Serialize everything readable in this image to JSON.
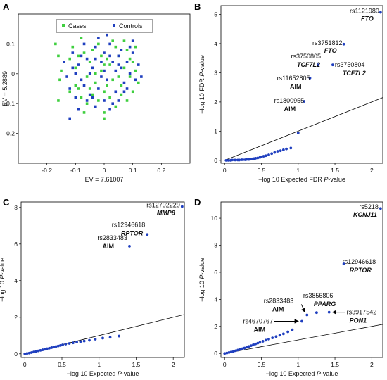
{
  "colors": {
    "cases": "#3fcf3f",
    "controls": "#1f3fbf",
    "line": "#000000",
    "points": "#1f3fbf"
  },
  "panels": [
    "A",
    "B",
    "C",
    "D"
  ],
  "chart_data": [
    {
      "id": "A",
      "type": "scatter",
      "xlabel": "EV = 7.61007",
      "ylabel": "EV = 5.2889",
      "xlim": [
        -0.3,
        0.3
      ],
      "ylim": [
        -0.3,
        0.2
      ],
      "xticks": [
        "-0.2",
        "-0.1",
        "0",
        "0.1",
        "0.2"
      ],
      "yticks": [
        "-0.2",
        "-0.1",
        "0",
        "0.1"
      ],
      "legend": {
        "placement": "top",
        "entries": [
          "Cases",
          "Controls"
        ]
      },
      "series": [
        {
          "name": "Cases",
          "points": [
            [
              -0.17,
              0.1
            ],
            [
              -0.16,
              0.06
            ],
            [
              -0.15,
              0.01
            ],
            [
              -0.155,
              -0.02
            ],
            [
              -0.16,
              -0.09
            ],
            [
              -0.12,
              0.05
            ],
            [
              -0.11,
              0.09
            ],
            [
              -0.1,
              0.02
            ],
            [
              -0.09,
              -0.05
            ],
            [
              -0.08,
              0.12
            ],
            [
              -0.07,
              0.07
            ],
            [
              -0.06,
              -0.01
            ],
            [
              -0.05,
              0.04
            ],
            [
              -0.04,
              0.08
            ],
            [
              -0.03,
              -0.03
            ],
            [
              -0.02,
              0.1
            ],
            [
              -0.01,
              0.01
            ],
            [
              0.0,
              -0.06
            ],
            [
              0.01,
              0.05
            ],
            [
              0.02,
              0.03
            ],
            [
              0.03,
              -0.02
            ],
            [
              0.04,
              0.09
            ],
            [
              0.05,
              0.06
            ],
            [
              0.06,
              -0.04
            ],
            [
              0.07,
              0.02
            ],
            [
              0.08,
              0.08
            ],
            [
              0.09,
              -0.01
            ],
            [
              0.1,
              0.04
            ],
            [
              0.11,
              0.01
            ],
            [
              0.12,
              -0.03
            ],
            [
              -0.08,
              -0.08
            ],
            [
              -0.06,
              -0.1
            ],
            [
              -0.04,
              -0.07
            ],
            [
              -0.02,
              -0.09
            ],
            [
              0.0,
              -0.13
            ],
            [
              0.02,
              -0.08
            ],
            [
              0.04,
              -0.11
            ],
            [
              0.06,
              -0.07
            ],
            [
              0.08,
              -0.09
            ],
            [
              -0.1,
              -0.04
            ],
            [
              -0.12,
              -0.06
            ],
            [
              0.0,
              0.03
            ],
            [
              -0.03,
              0.0
            ],
            [
              0.03,
              0.11
            ],
            [
              0.07,
              0.11
            ],
            [
              0.1,
              -0.06
            ],
            [
              -0.07,
              -0.13
            ],
            [
              0.0,
              -0.15
            ],
            [
              0.05,
              -0.01
            ],
            [
              -0.01,
              0.06
            ],
            [
              0.01,
              -0.04
            ],
            [
              -0.05,
              -0.05
            ],
            [
              0.09,
              0.05
            ],
            [
              -0.09,
              0.06
            ],
            [
              0.11,
              0.09
            ]
          ]
        },
        {
          "name": "Controls",
          "points": [
            [
              -0.14,
              0.04
            ],
            [
              -0.13,
              -0.01
            ],
            [
              -0.12,
              -0.05
            ],
            [
              -0.11,
              0.07
            ],
            [
              -0.1,
              -0.08
            ],
            [
              -0.09,
              0.03
            ],
            [
              -0.08,
              -0.02
            ],
            [
              -0.07,
              0.1
            ],
            [
              -0.06,
              0.05
            ],
            [
              -0.05,
              -0.07
            ],
            [
              -0.04,
              0.02
            ],
            [
              -0.03,
              0.09
            ],
            [
              -0.02,
              -0.05
            ],
            [
              -0.01,
              0.04
            ],
            [
              0.0,
              0.07
            ],
            [
              0.01,
              -0.02
            ],
            [
              0.02,
              0.1
            ],
            [
              0.03,
              0.04
            ],
            [
              0.04,
              -0.06
            ],
            [
              0.05,
              0.03
            ],
            [
              0.06,
              0.08
            ],
            [
              0.07,
              -0.03
            ],
            [
              0.08,
              0.04
            ],
            [
              0.09,
              0.0
            ],
            [
              0.1,
              0.07
            ],
            [
              0.11,
              -0.02
            ],
            [
              0.12,
              0.03
            ],
            [
              0.13,
              -0.01
            ],
            [
              -0.06,
              -0.09
            ],
            [
              -0.03,
              -0.11
            ],
            [
              0.0,
              -0.09
            ],
            [
              0.03,
              -0.1
            ],
            [
              0.05,
              -0.09
            ],
            [
              0.07,
              -0.06
            ],
            [
              -0.09,
              -0.12
            ],
            [
              -0.05,
              0.0
            ],
            [
              0.02,
              0.06
            ],
            [
              -0.08,
              0.06
            ],
            [
              0.04,
              0.01
            ],
            [
              0.06,
              0.02
            ],
            [
              -0.02,
              0.12
            ],
            [
              0.01,
              0.13
            ],
            [
              -0.07,
              -0.04
            ],
            [
              -0.1,
              0.0
            ],
            [
              0.09,
              0.09
            ],
            [
              0.02,
              -0.12
            ],
            [
              -0.01,
              -0.01
            ],
            [
              0.08,
              -0.05
            ],
            [
              -0.04,
              -0.08
            ],
            [
              -0.12,
              -0.15
            ],
            [
              0.0,
              0.01
            ],
            [
              0.1,
              0.11
            ],
            [
              -0.03,
              0.05
            ],
            [
              0.05,
              0.06
            ],
            [
              -0.11,
              0.02
            ]
          ]
        }
      ]
    },
    {
      "id": "B",
      "type": "scatter",
      "xlabel_prefix": "−log 10 Expected FDR ",
      "xlabel_italic": "P",
      "xlabel_suffix": "-value",
      "ylabel_prefix": "−log 10 FDR ",
      "ylabel_italic": "P",
      "ylabel_suffix": "-value",
      "xlim": [
        -0.05,
        2.15
      ],
      "ylim": [
        -0.1,
        5.3
      ],
      "xticks": [
        "0",
        "0.5",
        "1",
        "1.5",
        "2"
      ],
      "yticks": [
        "0",
        "1",
        "2",
        "3",
        "4",
        "5"
      ],
      "reference_line": [
        [
          0,
          0
        ],
        [
          2.15,
          2.15
        ]
      ],
      "points": [
        [
          0.02,
          0.0
        ],
        [
          0.05,
          0.0
        ],
        [
          0.08,
          0.0
        ],
        [
          0.1,
          0.01
        ],
        [
          0.13,
          0.01
        ],
        [
          0.15,
          0.01
        ],
        [
          0.18,
          0.01
        ],
        [
          0.2,
          0.01
        ],
        [
          0.23,
          0.02
        ],
        [
          0.25,
          0.02
        ],
        [
          0.28,
          0.02
        ],
        [
          0.3,
          0.03
        ],
        [
          0.33,
          0.03
        ],
        [
          0.35,
          0.04
        ],
        [
          0.38,
          0.05
        ],
        [
          0.4,
          0.06
        ],
        [
          0.42,
          0.07
        ],
        [
          0.45,
          0.08
        ],
        [
          0.48,
          0.1
        ],
        [
          0.5,
          0.12
        ],
        [
          0.53,
          0.14
        ],
        [
          0.56,
          0.16
        ],
        [
          0.6,
          0.19
        ],
        [
          0.64,
          0.23
        ],
        [
          0.68,
          0.27
        ],
        [
          0.72,
          0.31
        ],
        [
          0.76,
          0.33
        ],
        [
          0.8,
          0.36
        ],
        [
          0.84,
          0.39
        ],
        [
          0.9,
          0.42
        ],
        [
          1.0,
          0.94
        ],
        [
          1.08,
          2.02
        ],
        [
          1.16,
          2.82
        ],
        [
          1.27,
          3.27
        ],
        [
          1.47,
          3.27
        ],
        [
          1.62,
          3.98
        ],
        [
          2.12,
          5.07
        ]
      ],
      "annotations": [
        {
          "snp": "rs1121980",
          "gene": "FTO",
          "italic": true,
          "x": 2.12,
          "y": 5.07
        },
        {
          "snp": "rs3751812",
          "gene": "FTO",
          "italic": true,
          "x": 1.62,
          "y": 3.98
        },
        {
          "snp": "rs3750805",
          "gene": "TCF7L2",
          "italic": true,
          "x": 1.27,
          "y": 3.27
        },
        {
          "snp": "rs3750804",
          "gene": "TCF7L2",
          "italic": true,
          "x": 1.47,
          "y": 3.27
        },
        {
          "snp": "rs11652805",
          "gene": "AIM",
          "italic": false,
          "x": 1.16,
          "y": 2.82
        },
        {
          "snp": "rs1800955",
          "gene": "AIM",
          "italic": false,
          "x": 1.08,
          "y": 2.02
        }
      ]
    },
    {
      "id": "C",
      "type": "scatter",
      "xlabel_prefix": "−log 10 Expected ",
      "xlabel_italic": "P",
      "xlabel_suffix": "-value",
      "ylabel_prefix": "−log 10 ",
      "ylabel_italic": "P",
      "ylabel_suffix": "-value",
      "xlim": [
        -0.05,
        2.15
      ],
      "ylim": [
        -0.2,
        8.3
      ],
      "xticks": [
        "0",
        "0.5",
        "1",
        "1.5",
        "2"
      ],
      "yticks": [
        "0",
        "2",
        "4",
        "6",
        "8"
      ],
      "reference_line": [
        [
          0,
          0
        ],
        [
          2.15,
          2.15
        ]
      ],
      "points": [
        [
          0.0,
          0.0
        ],
        [
          0.03,
          0.02
        ],
        [
          0.06,
          0.04
        ],
        [
          0.09,
          0.07
        ],
        [
          0.12,
          0.1
        ],
        [
          0.15,
          0.13
        ],
        [
          0.18,
          0.16
        ],
        [
          0.21,
          0.19
        ],
        [
          0.24,
          0.22
        ],
        [
          0.27,
          0.25
        ],
        [
          0.3,
          0.28
        ],
        [
          0.33,
          0.31
        ],
        [
          0.36,
          0.34
        ],
        [
          0.39,
          0.37
        ],
        [
          0.42,
          0.4
        ],
        [
          0.45,
          0.43
        ],
        [
          0.48,
          0.46
        ],
        [
          0.51,
          0.49
        ],
        [
          0.55,
          0.53
        ],
        [
          0.6,
          0.57
        ],
        [
          0.65,
          0.6
        ],
        [
          0.7,
          0.64
        ],
        [
          0.75,
          0.67
        ],
        [
          0.8,
          0.7
        ],
        [
          0.87,
          0.74
        ],
        [
          0.95,
          0.8
        ],
        [
          1.05,
          0.86
        ],
        [
          1.15,
          0.9
        ],
        [
          1.27,
          0.97
        ],
        [
          1.41,
          5.88
        ],
        [
          1.65,
          6.52
        ],
        [
          2.12,
          8.05
        ]
      ],
      "annotations": [
        {
          "snp": "rs12792229",
          "gene": "MMP8",
          "italic": true,
          "x": 2.12,
          "y": 8.05
        },
        {
          "snp": "rs12946618",
          "gene": "RPTOR",
          "italic": true,
          "x": 1.65,
          "y": 6.52
        },
        {
          "snp": "rs2833483",
          "gene": "AIM",
          "italic": false,
          "x": 1.41,
          "y": 5.88
        }
      ]
    },
    {
      "id": "D",
      "type": "scatter",
      "xlabel_prefix": "−log 10 Expected ",
      "xlabel_italic": "P",
      "xlabel_suffix": "-value",
      "ylabel_prefix": "−log 10 ",
      "ylabel_italic": "P",
      "ylabel_suffix": "-value",
      "xlim": [
        -0.05,
        2.15
      ],
      "ylim": [
        -0.3,
        11.2
      ],
      "xticks": [
        "0",
        "0.5",
        "1",
        "1.5",
        "2"
      ],
      "yticks": [
        "0",
        "2",
        "4",
        "6",
        "8",
        "10"
      ],
      "reference_line": [
        [
          0,
          0
        ],
        [
          2.15,
          2.15
        ]
      ],
      "points": [
        [
          0.0,
          0.0
        ],
        [
          0.03,
          0.03
        ],
        [
          0.06,
          0.07
        ],
        [
          0.09,
          0.11
        ],
        [
          0.12,
          0.15
        ],
        [
          0.15,
          0.2
        ],
        [
          0.18,
          0.25
        ],
        [
          0.21,
          0.3
        ],
        [
          0.24,
          0.35
        ],
        [
          0.27,
          0.4
        ],
        [
          0.3,
          0.46
        ],
        [
          0.33,
          0.52
        ],
        [
          0.36,
          0.58
        ],
        [
          0.39,
          0.64
        ],
        [
          0.42,
          0.7
        ],
        [
          0.45,
          0.76
        ],
        [
          0.48,
          0.82
        ],
        [
          0.52,
          0.9
        ],
        [
          0.56,
          0.98
        ],
        [
          0.6,
          1.06
        ],
        [
          0.65,
          1.15
        ],
        [
          0.7,
          1.25
        ],
        [
          0.75,
          1.35
        ],
        [
          0.8,
          1.45
        ],
        [
          0.86,
          1.6
        ],
        [
          0.92,
          1.75
        ],
        [
          1.05,
          2.38
        ],
        [
          1.12,
          2.85
        ],
        [
          1.25,
          3.02
        ],
        [
          1.42,
          3.05
        ],
        [
          1.62,
          6.62
        ],
        [
          2.12,
          10.72
        ]
      ],
      "annotations": [
        {
          "snp": "rs5218",
          "gene": "KCNJ11",
          "italic": true,
          "x": 2.12,
          "y": 10.72
        },
        {
          "snp": "rs12946618",
          "gene": "RPTOR",
          "italic": true,
          "x": 1.62,
          "y": 6.62
        },
        {
          "snp": "rs3856806",
          "gene": "PPARG",
          "italic": true,
          "x": 1.25,
          "y": 3.02
        },
        {
          "snp": "rs2833483",
          "gene": "AIM",
          "italic": false,
          "x": 1.12,
          "y": 2.85
        },
        {
          "snp": "rs3917542",
          "gene": "PON1",
          "italic": true,
          "x": 1.42,
          "y": 3.05
        },
        {
          "snp": "rs4670767",
          "gene": "AIM",
          "italic": false,
          "x": 1.05,
          "y": 2.38
        }
      ]
    }
  ]
}
